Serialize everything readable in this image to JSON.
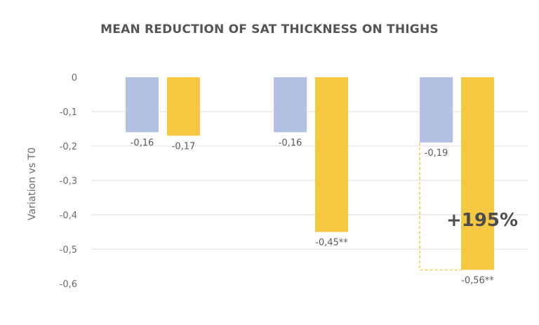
{
  "chart_data": {
    "type": "bar",
    "title": "MEAN REDUCTION OF SAT THICKNESS ON THIGHS",
    "xlabel": "",
    "ylabel": "Variation vs T0",
    "ylim": [
      -0.6,
      0
    ],
    "yticks": [
      0,
      -0.1,
      -0.2,
      -0.3,
      -0.4,
      -0.5,
      -0.6
    ],
    "ytick_labels": [
      "0",
      "-0,1",
      "-0,2",
      "-0,3",
      "-0,4",
      "-0,5",
      "-0,6"
    ],
    "grid": true,
    "categories": [
      "",
      "",
      ""
    ],
    "series": [
      {
        "color": "#b3c2e3",
        "values": [
          -0.16,
          -0.16,
          -0.19
        ],
        "labels": [
          "-0,16",
          "-0,16",
          "-0,19"
        ]
      },
      {
        "color": "#f6c842",
        "values": [
          -0.17,
          -0.45,
          -0.56
        ],
        "labels": [
          "-0,17",
          "-0,45**",
          "-0,56**"
        ]
      }
    ],
    "annotation": {
      "text": "+195%",
      "group": 2,
      "from_series": 0,
      "to_series": 1,
      "connector_color": "#f6c842"
    }
  }
}
